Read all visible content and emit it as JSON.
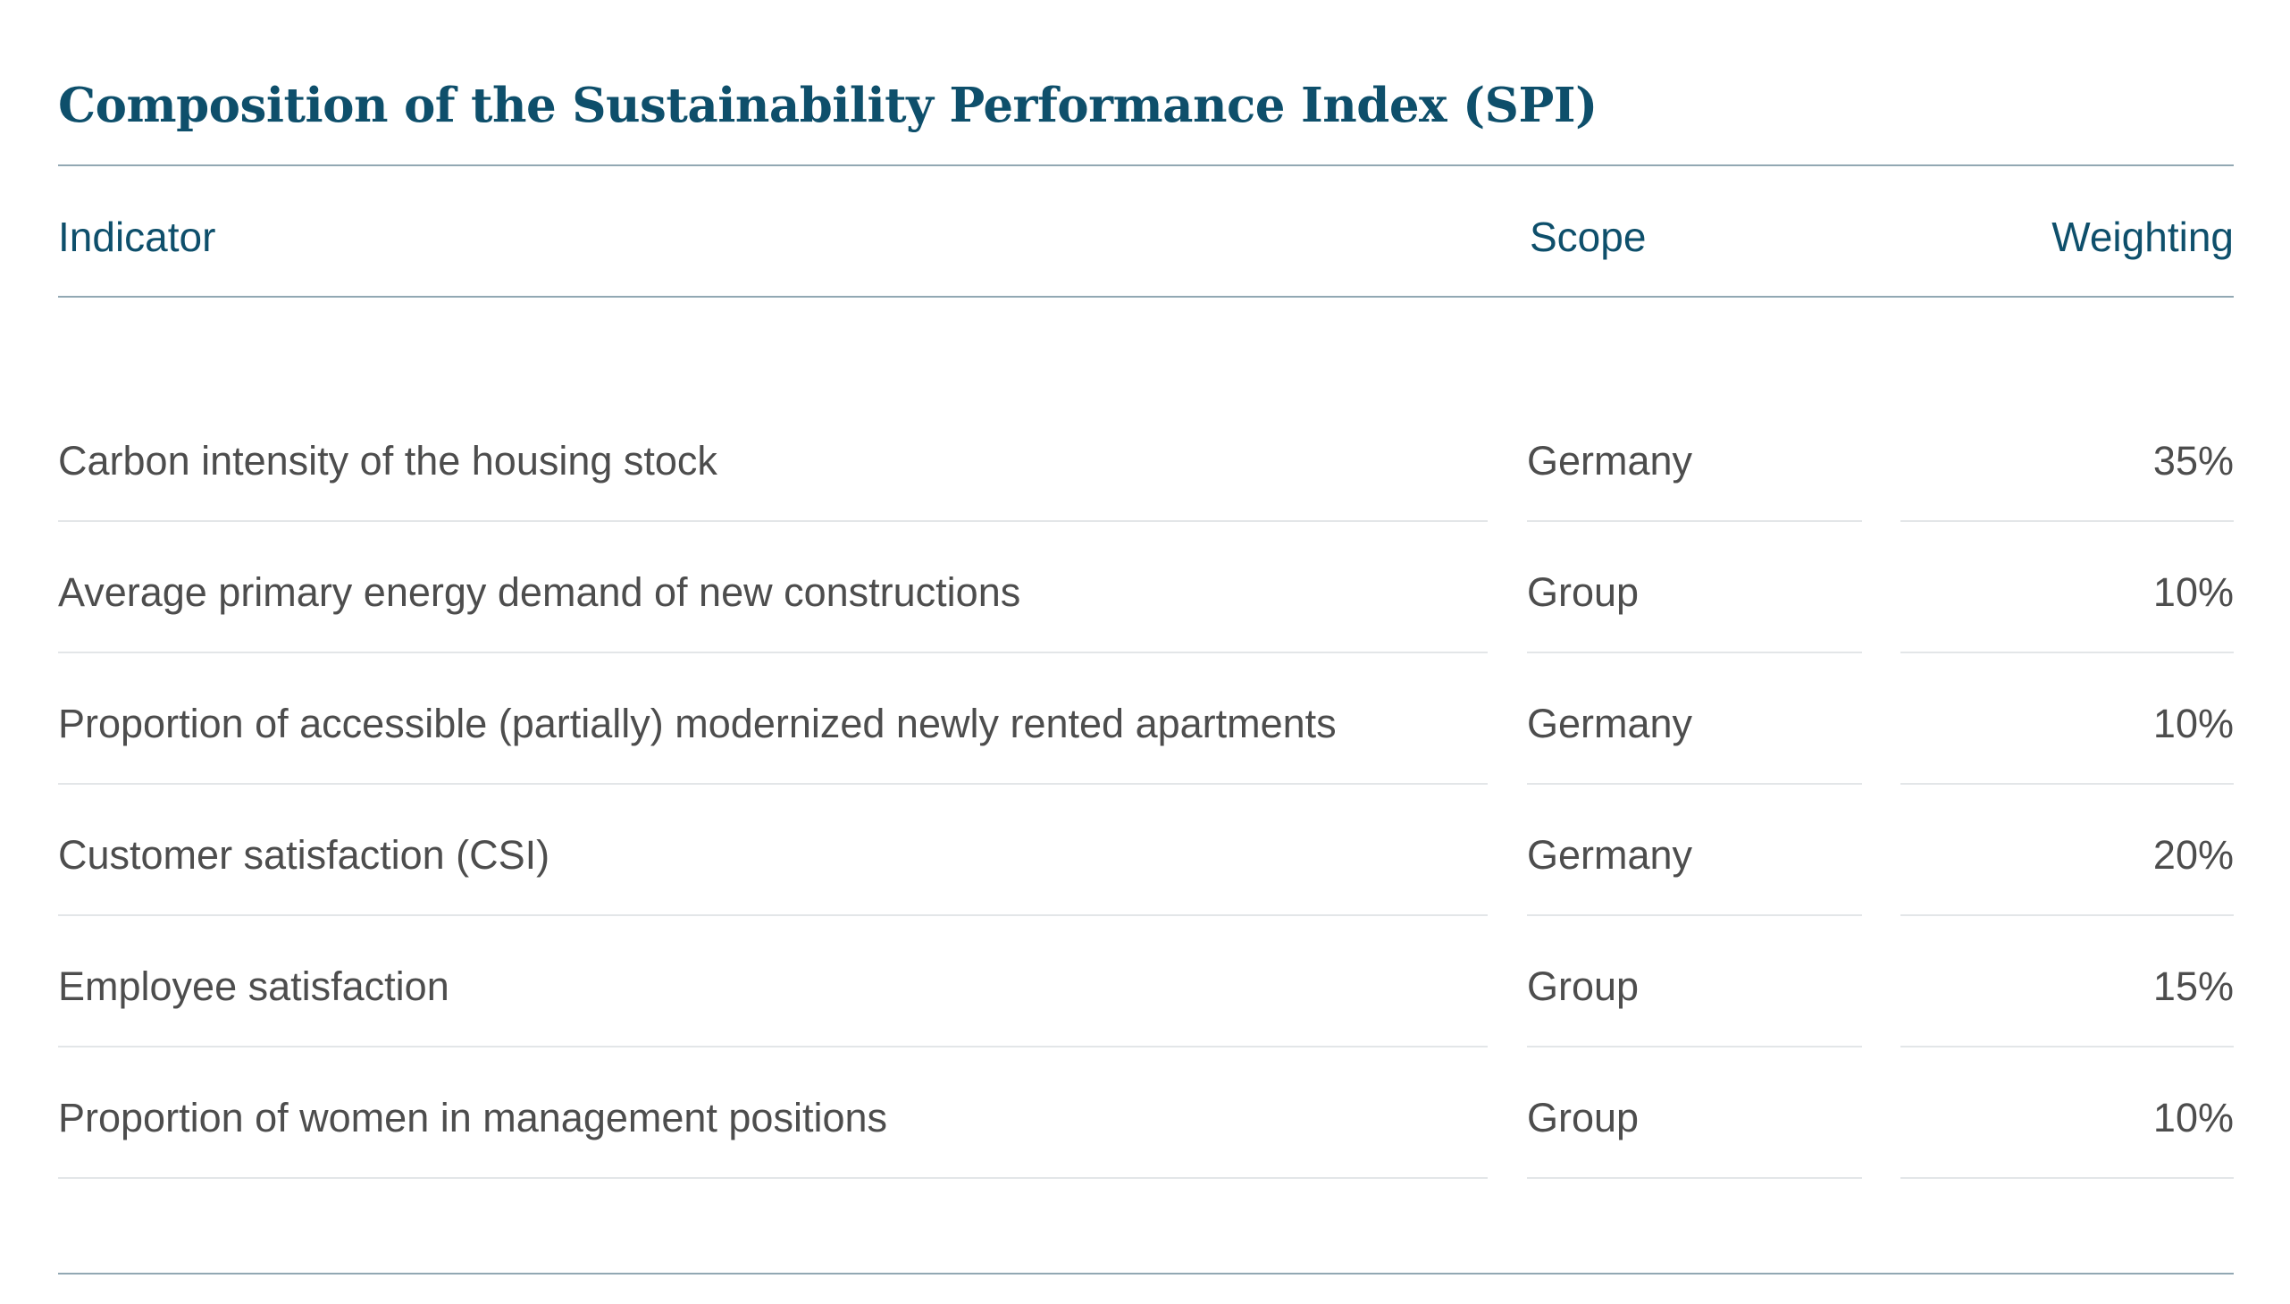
{
  "title": "Composition of the Sustainability Performance Index (SPI)",
  "colors": {
    "accent": "#0e4f6b",
    "body_text": "#4d4d4d",
    "rule": "#92a8b3",
    "row_divider": "#e3e6e8"
  },
  "table": {
    "headers": {
      "indicator": "Indicator",
      "scope": "Scope",
      "weighting": "Weighting"
    },
    "rows": [
      {
        "indicator": "Carbon intensity of the housing stock",
        "scope": "Germany",
        "weighting": "35%"
      },
      {
        "indicator": "Average primary energy demand of new constructions",
        "scope": "Group",
        "weighting": "10%"
      },
      {
        "indicator": "Proportion of accessible (partially) modernized newly rented apartments",
        "scope": "Germany",
        "weighting": "10%"
      },
      {
        "indicator": "Customer satisfaction (CSI)",
        "scope": "Germany",
        "weighting": "20%"
      },
      {
        "indicator": "Employee satisfaction",
        "scope": "Group",
        "weighting": "15%"
      },
      {
        "indicator": "Proportion of women in management positions",
        "scope": "Group",
        "weighting": "10%"
      }
    ]
  }
}
